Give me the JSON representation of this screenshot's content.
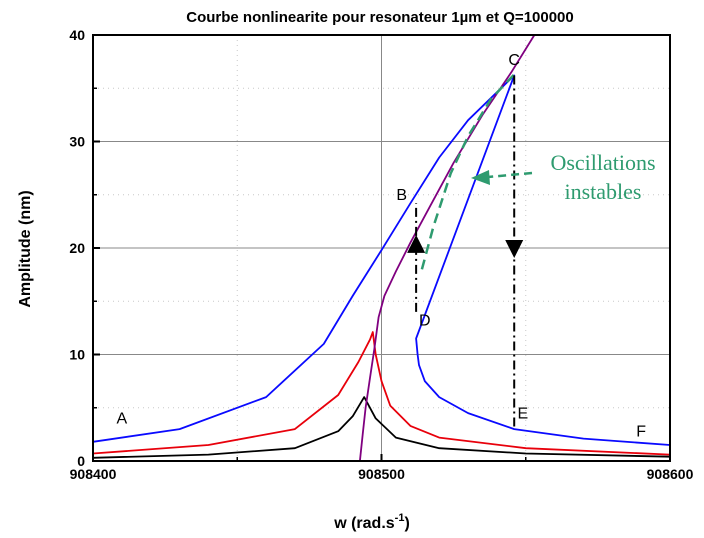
{
  "chart_data": {
    "type": "line",
    "title": "Courbe nonlinearite pour resonateur 1µm et Q=100000",
    "xlabel": "w (rad.s",
    "xlabel_sup": "-1",
    "xlabel_tail": ")",
    "ylabel": "Amplitude (nm)",
    "xlim": [
      908400,
      908600
    ],
    "ylim": [
      0,
      40
    ],
    "xticks": [
      908400,
      908500,
      908600
    ],
    "xtick_labels": [
      "908400",
      "908500",
      "908600"
    ],
    "yticks": [
      0,
      10,
      20,
      30,
      40
    ],
    "ytick_labels": [
      "0",
      "10",
      "20",
      "30",
      "40"
    ],
    "grid": true,
    "series": [
      {
        "color": "#000000",
        "x": [
          908400,
          908440,
          908470,
          908485,
          908490,
          908494,
          908498,
          908505,
          908520,
          908550,
          908600
        ],
        "y": [
          0.3,
          0.6,
          1.2,
          2.8,
          4.2,
          6.0,
          4.0,
          2.2,
          1.2,
          0.7,
          0.4
        ]
      },
      {
        "color": "#e8000b",
        "x": [
          908400,
          908440,
          908470,
          908485,
          908492,
          908496,
          908497,
          908498,
          908500,
          908503,
          908510,
          908520,
          908550,
          908600
        ],
        "y": [
          0.7,
          1.5,
          3.0,
          6.2,
          9.3,
          11.4,
          12.1,
          10.0,
          7.5,
          5.2,
          3.3,
          2.2,
          1.2,
          0.6
        ]
      },
      {
        "color": "#0a0aff",
        "x": [
          908400,
          908430,
          908460,
          908480,
          908490,
          908500,
          908510,
          908520,
          908530,
          908546,
          908512,
          908512.5,
          908513,
          908515,
          908520,
          908530,
          908546,
          908570,
          908600
        ],
        "y": [
          1.8,
          3.0,
          6.0,
          11.0,
          15.5,
          19.8,
          24.2,
          28.5,
          32.0,
          36.2,
          11.5,
          10.0,
          9.0,
          7.5,
          6.0,
          4.5,
          3.0,
          2.1,
          1.5
        ]
      },
      {
        "color": "#800080",
        "x": [
          908492.5,
          908493.5,
          908494.5,
          908496,
          908497.5,
          908499,
          908501,
          908505,
          908510,
          908517,
          908525,
          908535,
          908545,
          908553
        ],
        "y": [
          0,
          2.5,
          5.0,
          7.8,
          10.5,
          13.5,
          15.5,
          17.8,
          20.5,
          24.0,
          28.0,
          32.5,
          36.5,
          40
        ]
      }
    ],
    "annotations": {
      "oscillations_line1": "Oscillations",
      "oscillations_line2": "instables",
      "points": [
        {
          "label": "A",
          "x": 908410,
          "y": 3.5
        },
        {
          "label": "B",
          "x": 908507,
          "y": 24.5
        },
        {
          "label": "C",
          "x": 908546,
          "y": 37.2
        },
        {
          "label": "D",
          "x": 908515,
          "y": 12.7
        },
        {
          "label": "E",
          "x": 908549,
          "y": 4.0
        },
        {
          "label": "F",
          "x": 908590,
          "y": 2.3
        }
      ],
      "jump_up": {
        "x": 908512,
        "y_from": 14.0,
        "y_to": 24.2
      },
      "jump_down": {
        "x": 908546,
        "y_from": 36.2,
        "y_to": 3.0
      },
      "unstable_branch": {
        "x": [
          908514,
          908518,
          908524,
          908530,
          908538,
          908546
        ],
        "y": [
          18,
          22,
          27,
          30.5,
          34,
          36.3
        ]
      }
    },
    "colors": {
      "unstable": "#2e9b6f"
    }
  }
}
